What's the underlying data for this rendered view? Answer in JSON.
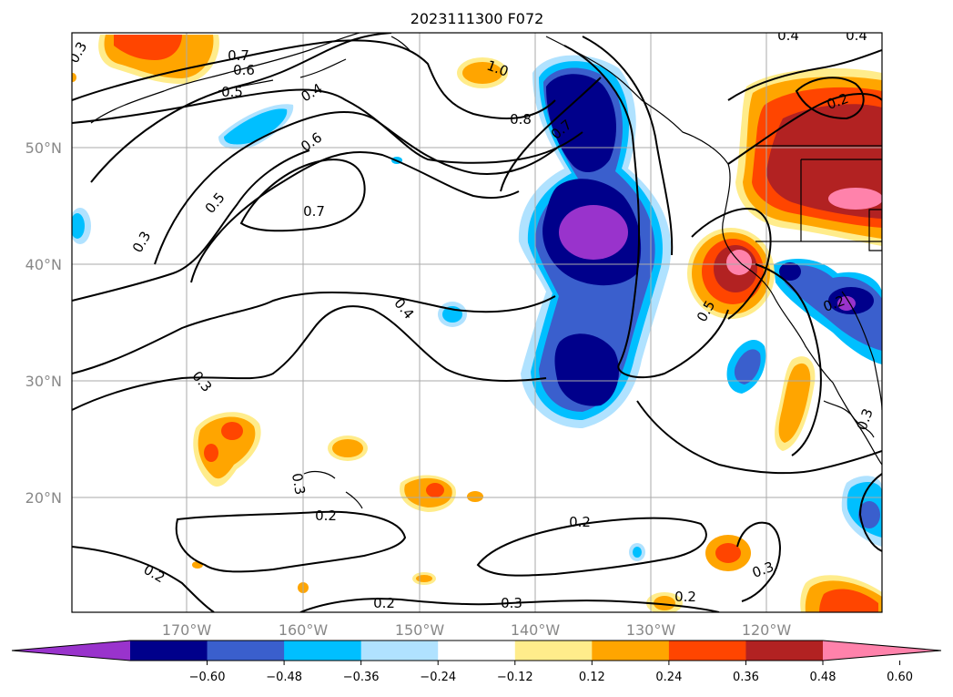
{
  "title": "2023111300 F072",
  "map": {
    "lat_labels": [
      "50°N",
      "40°N",
      "30°N",
      "20°N"
    ],
    "lon_labels": [
      "170°W",
      "160°W",
      "150°W",
      "140°W",
      "130°W",
      "120°W"
    ],
    "grid": true,
    "contour_labels": [
      "0.3",
      "0.7",
      "0.6",
      "0.5",
      "0.4",
      "1.0",
      "0.8",
      "0.7",
      "0.6",
      "0.5",
      "0.7",
      "0.3",
      "0.4",
      "0.3",
      "0.3",
      "0.2",
      "0.2",
      "0.2",
      "0.2",
      "0.3",
      "0.2",
      "0.3",
      "0.5",
      "0.2",
      "0.4",
      "0.4",
      "0.3",
      "0.2"
    ]
  },
  "colorbar": {
    "colors": [
      "#9933cc",
      "#00008b",
      "#3a5fcd",
      "#00bfff",
      "#b0e2ff",
      "#ffffff",
      "#ffec8b",
      "#ffa500",
      "#ff4500",
      "#b22222",
      "#ff82ab"
    ],
    "tick_labels": [
      "−0.60",
      "−0.48",
      "−0.36",
      "−0.24",
      "−0.12",
      "0.12",
      "0.24",
      "0.36",
      "0.48",
      "0.60"
    ]
  },
  "colors": {
    "contour_line": "#000000",
    "grid_line": "#aaaaaa",
    "coastline": "#000000"
  }
}
